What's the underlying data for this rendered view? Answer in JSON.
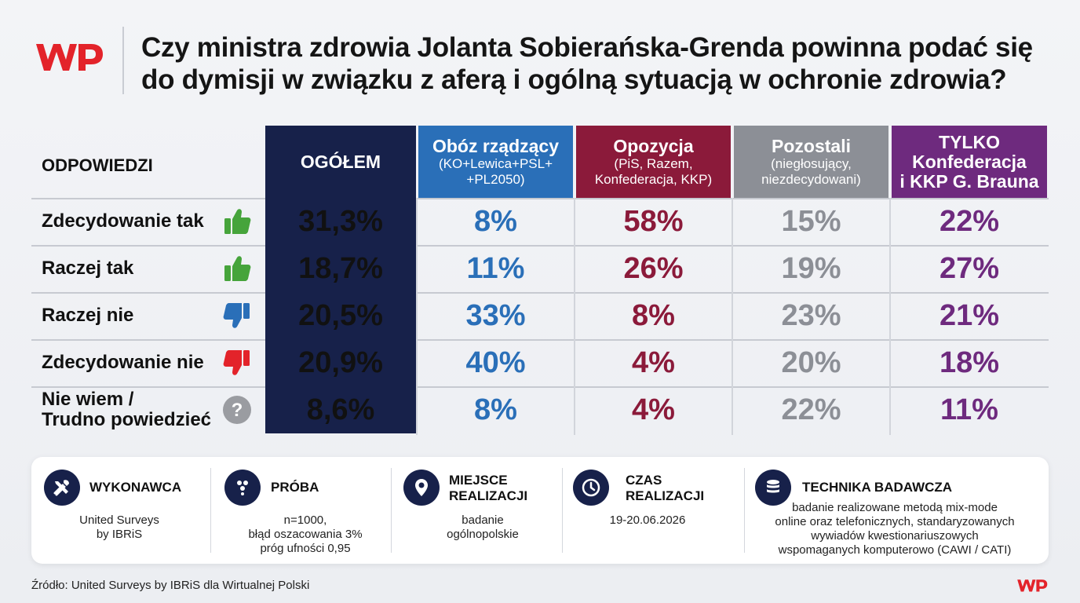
{
  "header": {
    "title_line1": "Czy ministra zdrowia Jolanta Sobierańska-Grenda powinna podać się",
    "title_line2": "do dymisji w związku z aferą i ogólną sytuacją w ochronie zdrowia?"
  },
  "colors": {
    "wp_red": "#e3232a",
    "total": "#17214a",
    "coalition": "#2a6fb8",
    "opposition": "#8b1a3a",
    "others": "#8c8f96",
    "konfederacja": "#6e2a7e"
  },
  "chart_data": {
    "type": "table",
    "row_header": "ODPOWIEDZI",
    "columns": [
      {
        "key": "total",
        "title": "OGÓŁEM",
        "subtitle": ""
      },
      {
        "key": "coalition",
        "title": "Obóz rządzący",
        "subtitle": "(KO+Lewica+PSL+\n+PL2050)"
      },
      {
        "key": "opposition",
        "title": "Opozycja",
        "subtitle": "(PiS, Razem,\nKonfederacja, KKP)"
      },
      {
        "key": "others",
        "title": "Pozostali",
        "subtitle": "(niegłosujący,\nniezdecydowani)"
      },
      {
        "key": "konfederacja",
        "title": "TYLKO\nKonfederacja\ni KKP G. Brauna",
        "subtitle": ""
      }
    ],
    "rows": [
      {
        "label": "Zdecydowanie tak",
        "icon": "thumbs-up-icon",
        "values": [
          "31,3%",
          "8%",
          "58%",
          "15%",
          "22%"
        ]
      },
      {
        "label": "Raczej tak",
        "icon": "thumbs-up-icon",
        "values": [
          "18,7%",
          "11%",
          "26%",
          "19%",
          "27%"
        ]
      },
      {
        "label": "Raczej nie",
        "icon": "thumbs-down-icon",
        "values": [
          "20,5%",
          "33%",
          "8%",
          "23%",
          "21%"
        ]
      },
      {
        "label": "Zdecydowanie nie",
        "icon": "thumbs-down-icon",
        "values": [
          "20,9%",
          "40%",
          "4%",
          "20%",
          "18%"
        ]
      },
      {
        "label": "Nie wiem /\nTrudno powiedzieć",
        "icon": "question-icon",
        "values": [
          "8,6%",
          "8%",
          "4%",
          "22%",
          "11%"
        ]
      }
    ]
  },
  "info": [
    {
      "title": "WYKONAWCA",
      "text": "United Surveys\nby IBRiS",
      "icon": "tools-icon"
    },
    {
      "title": "PRÓBA",
      "text": "n=1000,\nbłąd oszacowania 3%\npróg ufności 0,95",
      "icon": "people-icon"
    },
    {
      "title": "MIEJSCE\nREALIZACJI",
      "text": "badanie\nogólnopolskie",
      "icon": "location-pin-icon"
    },
    {
      "title": "CZAS\nREALIZACJI",
      "text": "19-20.06.2026",
      "icon": "clock-icon"
    },
    {
      "title": "TECHNIKA BADAWCZA",
      "text": "badanie realizowane metodą mix-mode\nonline oraz telefonicznych, standaryzowanych\nwywiadów kwestionariuszowych\nwspomaganych komputerowo (CAWI / CATI)",
      "icon": "database-icon"
    }
  ],
  "source": "Źródło: United Surveys by IBRiS dla Wirtualnej Polski"
}
